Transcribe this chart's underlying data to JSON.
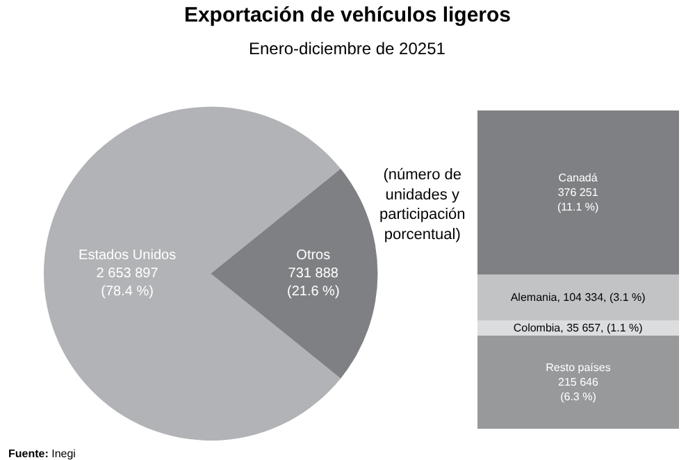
{
  "chart_data": [
    {
      "type": "pie",
      "title": "Exportación de vehículos ligeros",
      "subtitle": "Enero-diciembre de 20251",
      "categories": [
        "Estados Unidos",
        "Otros"
      ],
      "values": [
        2653897,
        731888
      ],
      "colors": [
        "#b1b3b6",
        "#7e8083"
      ],
      "value_labels": [
        "2 653 897\n(78.4 %)",
        "731 888\n(21.6 %)"
      ],
      "annotations": [
        "(número de\nunidades y\nparticipación\nporcentual)",
        "Fuente: Inegi"
      ]
    },
    {
      "type": "bar",
      "stacked": true,
      "categories": [
        null
      ],
      "ylim": [
        0,
        731888
      ],
      "tick_labels": false,
      "series": [
        {
          "color": "#97999b",
          "values": [
            215646
          ],
          "value_labels": [
            "Resto países\n215 646\n(6.3 %)"
          ]
        },
        {
          "color": "#dcdddf",
          "values": [
            35657
          ],
          "value_labels": [
            "Colombia, 35 657, (1.1 %)"
          ]
        },
        {
          "color": "#c2c3c5",
          "values": [
            104334
          ],
          "value_labels": [
            "Alemania, 104 334, (3.1 %)"
          ]
        },
        {
          "color": "#7f8083",
          "values": [
            376251
          ],
          "value_labels": [
            "Canadá\n376 251\n(11.1 %)"
          ]
        }
      ]
    }
  ]
}
